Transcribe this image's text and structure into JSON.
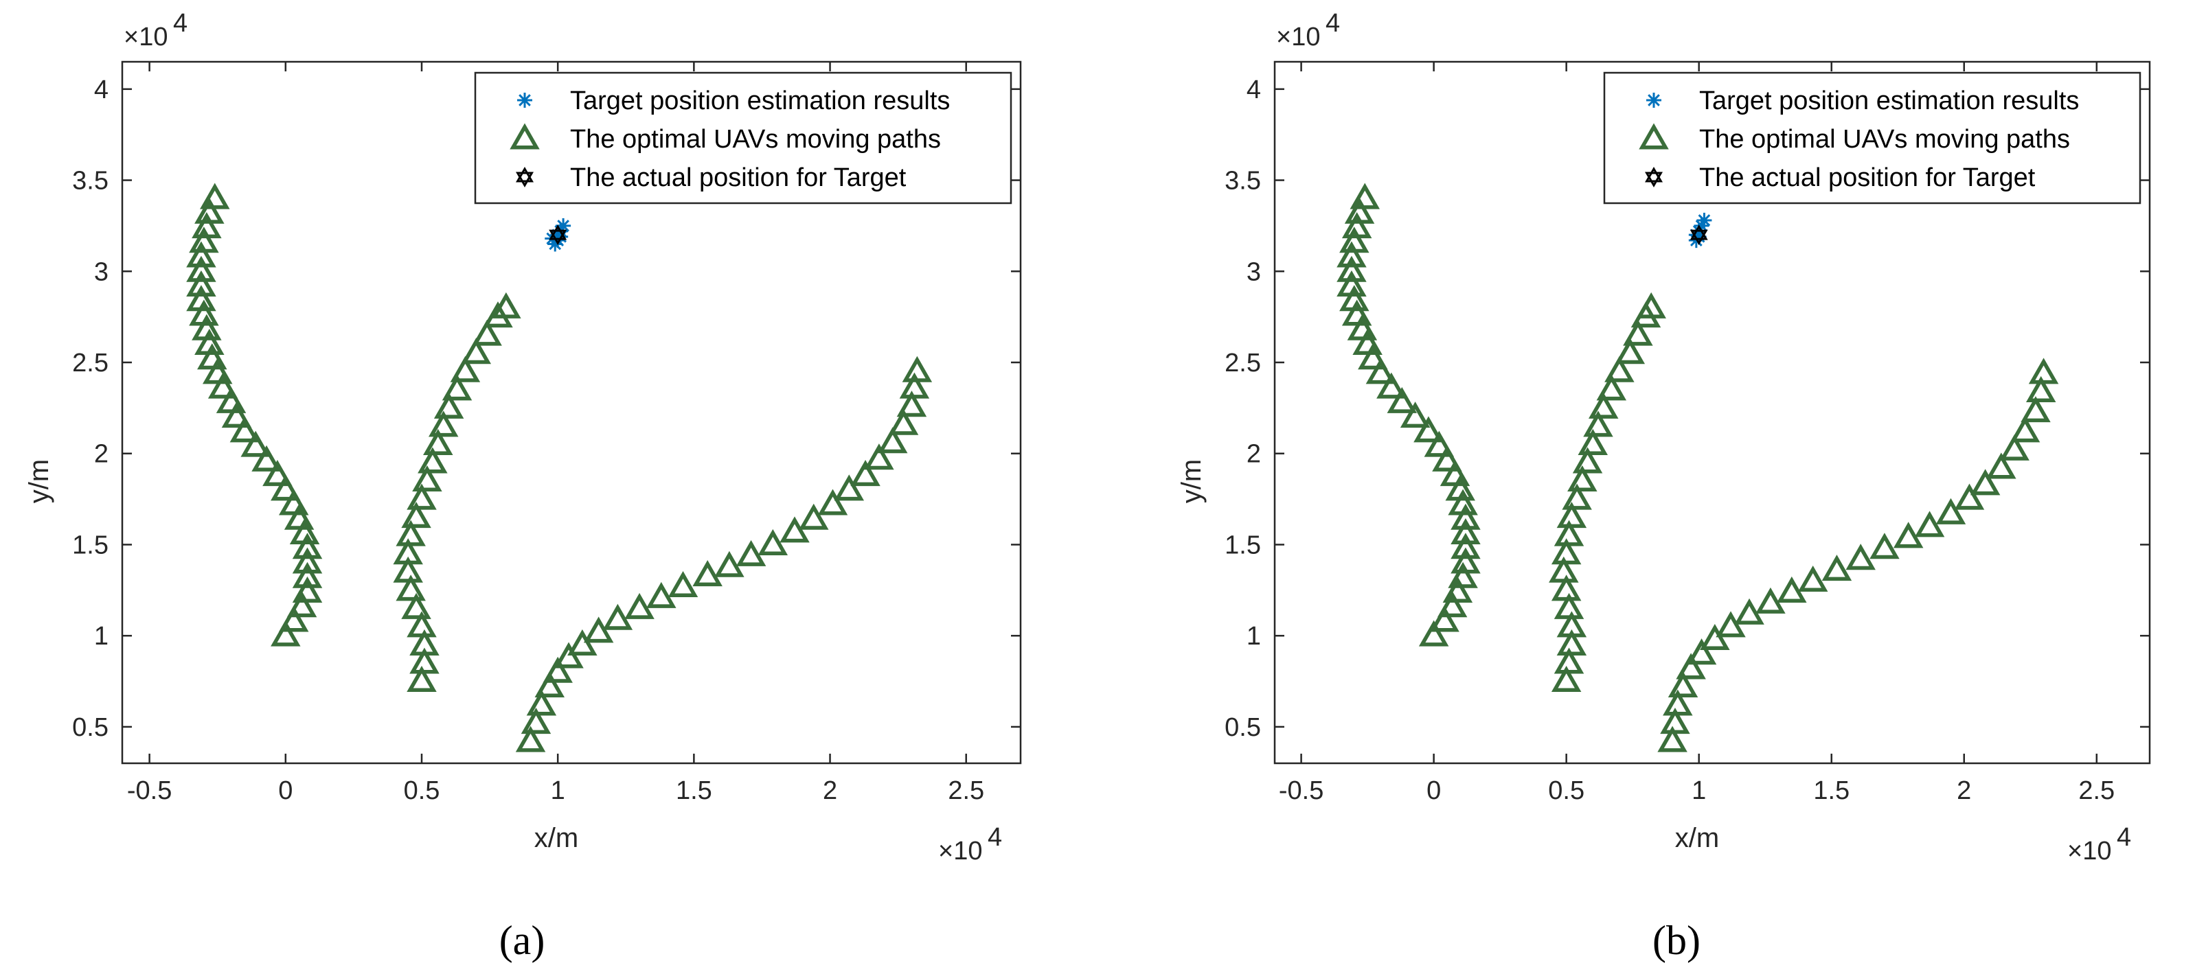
{
  "chart_data": [
    {
      "type": "scatter",
      "panel_label": "(a)",
      "xlabel": "x/m",
      "ylabel": "y/m",
      "x_multiplier": "×10",
      "x_multiplier_exp": "4",
      "y_multiplier": "×10",
      "y_multiplier_exp": "4",
      "xlim": [
        -0.6,
        2.7
      ],
      "ylim": [
        0.3,
        4.15
      ],
      "xticks": [
        -0.5,
        0,
        0.5,
        1,
        1.5,
        2,
        2.5
      ],
      "xtick_labels": [
        "-0.5",
        "0",
        "0.5",
        "1",
        "1.5",
        "2",
        "2.5"
      ],
      "yticks": [
        0.5,
        1,
        1.5,
        2,
        2.5,
        3,
        3.5,
        4
      ],
      "ytick_labels": [
        "0.5",
        "1",
        "1.5",
        "2",
        "2.5",
        "3",
        "3.5",
        "4"
      ],
      "grid": false,
      "legend_position": "top-right",
      "series": [
        {
          "name": "Target position estimation results",
          "marker": "asterisk",
          "color": "#0072bd",
          "points": [
            [
              0.99,
              3.15
            ],
            [
              1.0,
              3.2
            ],
            [
              1.01,
              3.22
            ],
            [
              1.02,
              3.25
            ],
            [
              0.98,
              3.18
            ],
            [
              1.0,
              3.17
            ],
            [
              1.01,
              3.19
            ]
          ]
        },
        {
          "name": "The optimal UAVs moving paths",
          "marker": "triangle",
          "color": "#3a6e3a",
          "paths": [
            [
              [
                0.0,
                1.0
              ],
              [
                0.03,
                1.08
              ],
              [
                0.06,
                1.16
              ],
              [
                0.08,
                1.24
              ],
              [
                0.08,
                1.32
              ],
              [
                0.08,
                1.4
              ],
              [
                0.08,
                1.48
              ],
              [
                0.07,
                1.56
              ],
              [
                0.05,
                1.64
              ],
              [
                0.03,
                1.72
              ],
              [
                0.0,
                1.8
              ],
              [
                -0.03,
                1.88
              ],
              [
                -0.07,
                1.96
              ],
              [
                -0.11,
                2.04
              ],
              [
                -0.15,
                2.12
              ],
              [
                -0.18,
                2.2
              ],
              [
                -0.2,
                2.28
              ],
              [
                -0.23,
                2.36
              ],
              [
                -0.25,
                2.44
              ],
              [
                -0.27,
                2.52
              ],
              [
                -0.28,
                2.6
              ],
              [
                -0.29,
                2.68
              ],
              [
                -0.3,
                2.76
              ],
              [
                -0.31,
                2.84
              ],
              [
                -0.31,
                2.92
              ],
              [
                -0.31,
                3.0
              ],
              [
                -0.31,
                3.08
              ],
              [
                -0.3,
                3.16
              ],
              [
                -0.29,
                3.24
              ],
              [
                -0.28,
                3.32
              ],
              [
                -0.26,
                3.4
              ]
            ],
            [
              [
                0.5,
                0.75
              ],
              [
                0.51,
                0.85
              ],
              [
                0.51,
                0.95
              ],
              [
                0.5,
                1.05
              ],
              [
                0.48,
                1.15
              ],
              [
                0.46,
                1.25
              ],
              [
                0.45,
                1.35
              ],
              [
                0.45,
                1.45
              ],
              [
                0.46,
                1.55
              ],
              [
                0.48,
                1.65
              ],
              [
                0.5,
                1.75
              ],
              [
                0.52,
                1.85
              ],
              [
                0.54,
                1.95
              ],
              [
                0.56,
                2.05
              ],
              [
                0.58,
                2.15
              ],
              [
                0.6,
                2.25
              ],
              [
                0.63,
                2.35
              ],
              [
                0.66,
                2.45
              ],
              [
                0.7,
                2.55
              ],
              [
                0.74,
                2.65
              ],
              [
                0.78,
                2.75
              ],
              [
                0.81,
                2.8
              ]
            ],
            [
              [
                0.9,
                0.42
              ],
              [
                0.92,
                0.52
              ],
              [
                0.94,
                0.62
              ],
              [
                0.97,
                0.72
              ],
              [
                1.0,
                0.8
              ],
              [
                1.04,
                0.88
              ],
              [
                1.09,
                0.95
              ],
              [
                1.15,
                1.02
              ],
              [
                1.22,
                1.09
              ],
              [
                1.3,
                1.15
              ],
              [
                1.38,
                1.21
              ],
              [
                1.46,
                1.27
              ],
              [
                1.55,
                1.33
              ],
              [
                1.63,
                1.38
              ],
              [
                1.71,
                1.44
              ],
              [
                1.79,
                1.5
              ],
              [
                1.87,
                1.57
              ],
              [
                1.94,
                1.64
              ],
              [
                2.01,
                1.72
              ],
              [
                2.07,
                1.8
              ],
              [
                2.13,
                1.88
              ],
              [
                2.18,
                1.97
              ],
              [
                2.23,
                2.06
              ],
              [
                2.27,
                2.16
              ],
              [
                2.3,
                2.26
              ],
              [
                2.31,
                2.36
              ],
              [
                2.32,
                2.45
              ]
            ]
          ]
        },
        {
          "name": "The actual position for Target",
          "marker": "hexagram",
          "color": "#000000",
          "points": [
            [
              1.0,
              3.2
            ]
          ]
        }
      ]
    },
    {
      "type": "scatter",
      "panel_label": "(b)",
      "xlabel": "x/m",
      "ylabel": "y/m",
      "x_multiplier": "×10",
      "x_multiplier_exp": "4",
      "y_multiplier": "×10",
      "y_multiplier_exp": "4",
      "xlim": [
        -0.6,
        2.7
      ],
      "ylim": [
        0.3,
        4.15
      ],
      "xticks": [
        -0.5,
        0,
        0.5,
        1,
        1.5,
        2,
        2.5
      ],
      "xtick_labels": [
        "-0.5",
        "0",
        "0.5",
        "1",
        "1.5",
        "2",
        "2.5"
      ],
      "yticks": [
        0.5,
        1,
        1.5,
        2,
        2.5,
        3,
        3.5,
        4
      ],
      "ytick_labels": [
        "0.5",
        "1",
        "1.5",
        "2",
        "2.5",
        "3",
        "3.5",
        "4"
      ],
      "grid": false,
      "legend_position": "top-right",
      "series": [
        {
          "name": "Target position estimation results",
          "marker": "asterisk",
          "color": "#0072bd",
          "points": [
            [
              0.99,
              3.17
            ],
            [
              1.0,
              3.22
            ],
            [
              1.01,
              3.25
            ],
            [
              1.02,
              3.28
            ],
            [
              0.99,
              3.2
            ],
            [
              1.0,
              3.19
            ]
          ]
        },
        {
          "name": "The optimal UAVs moving paths",
          "marker": "triangle",
          "color": "#3a6e3a",
          "paths": [
            [
              [
                0.0,
                1.0
              ],
              [
                0.04,
                1.08
              ],
              [
                0.07,
                1.16
              ],
              [
                0.09,
                1.24
              ],
              [
                0.11,
                1.32
              ],
              [
                0.12,
                1.4
              ],
              [
                0.12,
                1.48
              ],
              [
                0.12,
                1.56
              ],
              [
                0.12,
                1.64
              ],
              [
                0.11,
                1.72
              ],
              [
                0.1,
                1.8
              ],
              [
                0.08,
                1.88
              ],
              [
                0.05,
                1.96
              ],
              [
                0.02,
                2.04
              ],
              [
                -0.02,
                2.12
              ],
              [
                -0.07,
                2.2
              ],
              [
                -0.12,
                2.28
              ],
              [
                -0.16,
                2.36
              ],
              [
                -0.2,
                2.44
              ],
              [
                -0.23,
                2.52
              ],
              [
                -0.25,
                2.6
              ],
              [
                -0.27,
                2.68
              ],
              [
                -0.29,
                2.76
              ],
              [
                -0.3,
                2.84
              ],
              [
                -0.31,
                2.92
              ],
              [
                -0.31,
                3.0
              ],
              [
                -0.31,
                3.08
              ],
              [
                -0.3,
                3.16
              ],
              [
                -0.29,
                3.24
              ],
              [
                -0.28,
                3.32
              ],
              [
                -0.26,
                3.4
              ]
            ],
            [
              [
                0.5,
                0.75
              ],
              [
                0.51,
                0.85
              ],
              [
                0.52,
                0.95
              ],
              [
                0.52,
                1.05
              ],
              [
                0.51,
                1.15
              ],
              [
                0.5,
                1.25
              ],
              [
                0.49,
                1.35
              ],
              [
                0.5,
                1.45
              ],
              [
                0.51,
                1.55
              ],
              [
                0.52,
                1.65
              ],
              [
                0.54,
                1.75
              ],
              [
                0.56,
                1.85
              ],
              [
                0.58,
                1.95
              ],
              [
                0.6,
                2.05
              ],
              [
                0.62,
                2.15
              ],
              [
                0.64,
                2.25
              ],
              [
                0.67,
                2.35
              ],
              [
                0.7,
                2.45
              ],
              [
                0.74,
                2.55
              ],
              [
                0.77,
                2.65
              ],
              [
                0.8,
                2.75
              ],
              [
                0.82,
                2.8
              ]
            ],
            [
              [
                0.9,
                0.42
              ],
              [
                0.91,
                0.52
              ],
              [
                0.92,
                0.62
              ],
              [
                0.94,
                0.72
              ],
              [
                0.97,
                0.82
              ],
              [
                1.01,
                0.9
              ],
              [
                1.06,
                0.98
              ],
              [
                1.12,
                1.05
              ],
              [
                1.19,
                1.12
              ],
              [
                1.27,
                1.18
              ],
              [
                1.35,
                1.24
              ],
              [
                1.43,
                1.3
              ],
              [
                1.52,
                1.36
              ],
              [
                1.61,
                1.42
              ],
              [
                1.7,
                1.48
              ],
              [
                1.79,
                1.54
              ],
              [
                1.87,
                1.6
              ],
              [
                1.95,
                1.67
              ],
              [
                2.02,
                1.75
              ],
              [
                2.08,
                1.83
              ],
              [
                2.14,
                1.92
              ],
              [
                2.19,
                2.02
              ],
              [
                2.23,
                2.12
              ],
              [
                2.27,
                2.23
              ],
              [
                2.29,
                2.34
              ],
              [
                2.3,
                2.44
              ]
            ]
          ]
        },
        {
          "name": "The actual position for Target",
          "marker": "hexagram",
          "color": "#000000",
          "points": [
            [
              1.0,
              3.2
            ]
          ]
        }
      ]
    }
  ]
}
